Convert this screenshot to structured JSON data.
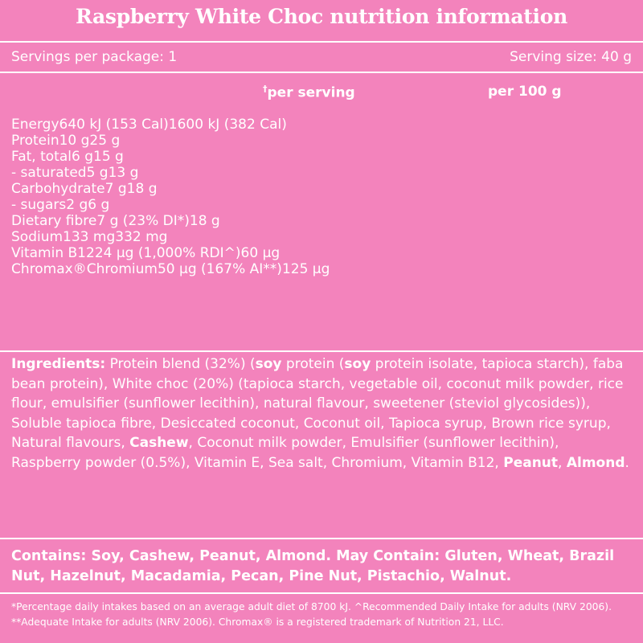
{
  "title": "Raspberry White Choc nutrition information",
  "servings": {
    "per_package": "Servings per package: 1",
    "size": "Serving size: 40 g"
  },
  "table": {
    "columns": [
      {
        "mark": "†",
        "label": "per serving"
      },
      {
        "label": "per 100 g"
      }
    ],
    "rows": [
      [
        "Energy",
        "640 kJ (153 Cal)",
        "1600 kJ (382 Cal)"
      ],
      [
        "Protein",
        "10 g",
        "25 g"
      ],
      [
        "Fat, total",
        "6 g",
        "15 g"
      ],
      [
        "- saturated",
        "5 g",
        "13 g"
      ],
      [
        "Carbohydrate",
        "7 g",
        "18 g"
      ],
      [
        "- sugars",
        "2 g",
        "6 g"
      ],
      [
        "Dietary fibre",
        "7 g (23% DI*)",
        "18 g"
      ],
      [
        "Sodium",
        "133 mg",
        "332 mg"
      ],
      [
        "Vitamin B12",
        "24 µg (1,000% RDI^)",
        "60 µg"
      ],
      [
        "Chromax®Chromium",
        "50 µg (167% AI**)",
        "125 µg"
      ]
    ]
  },
  "ingredients": [
    {
      "text": "Ingredients:",
      "bold": true
    },
    {
      "text": " Protein blend (32%) ("
    },
    {
      "text": "soy",
      "bold": true
    },
    {
      "text": " protein ("
    },
    {
      "text": "soy",
      "bold": true
    },
    {
      "text": " protein isolate, tapioca starch), faba bean protein), White choc (20%) (tapioca starch, vegetable oil, coconut milk powder, rice flour, emulsifier (sunflower lecithin), natural flavour, sweetener (steviol glycosides)), Soluble tapioca fibre, Desiccated coconut, Coconut oil, Tapioca syrup, Brown rice syrup, Natural flavours, "
    },
    {
      "text": "Cashew",
      "bold": true
    },
    {
      "text": ", Coconut milk powder, Emulsifier (sunflower lecithin), Raspberry powder (0.5%), Vitamin E, Sea salt, Chromium, Vitamin B12, "
    },
    {
      "text": "Peanut",
      "bold": true
    },
    {
      "text": ", "
    },
    {
      "text": "Almond",
      "bold": true
    },
    {
      "text": "."
    }
  ],
  "contains": "Contains: Soy, Cashew, Peanut, Almond. May Contain: Gluten, Wheat, Brazil Nut, Hazelnut, Macadamia, Pecan, Pine Nut, Pistachio, Walnut.",
  "footnote": "*Percentage daily intakes based on an average adult diet of 8700 kJ. ^Recommended Daily Intake for adults (NRV 2006). **Adequate Intake for adults (NRV 2006). Chromax® is a registered trademark of Nutrition 21, LLC."
}
